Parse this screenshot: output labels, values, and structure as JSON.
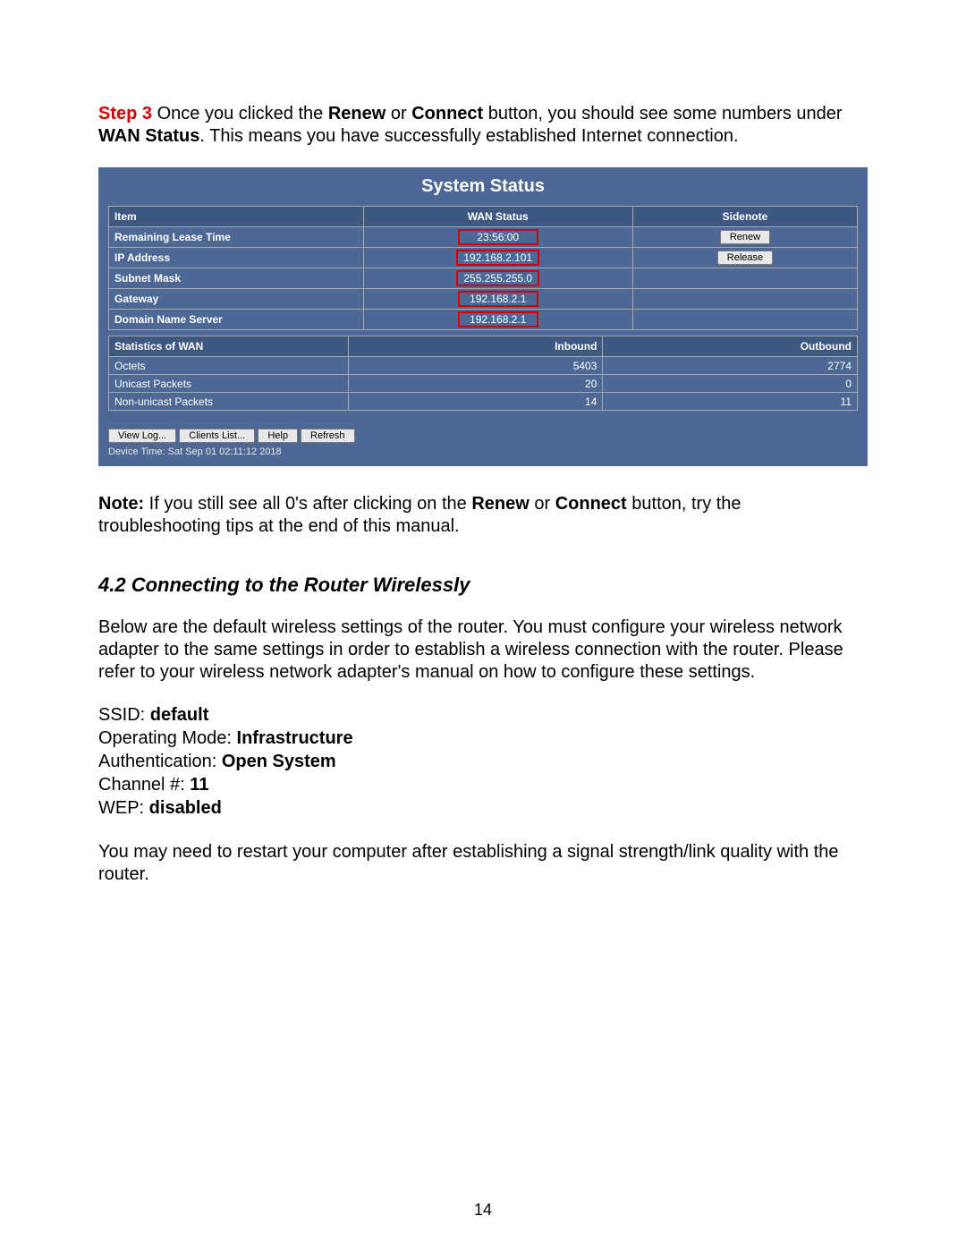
{
  "step": {
    "label": "Step 3",
    "text_before_bold1": " Once you clicked the ",
    "bold1": "Renew",
    "mid1": " or ",
    "bold2": "Connect",
    "mid2": " button, you should see some numbers under ",
    "bold3": "WAN Status",
    "after": ". This means you have successfully established Internet connection."
  },
  "panel": {
    "title": "System Status",
    "table1": {
      "headers": {
        "item": "Item",
        "wan": "WAN Status",
        "note": "Sidenote"
      },
      "rows": [
        {
          "item": "Remaining Lease Time",
          "wan": "23:56:00",
          "note_button": "Renew",
          "red_box": true
        },
        {
          "item": "IP Address",
          "wan": "192.168.2.101",
          "note_button": "Release",
          "red_box": true
        },
        {
          "item": "Subnet Mask",
          "wan": "255.255.255.0",
          "note_button": "",
          "red_box": true
        },
        {
          "item": "Gateway",
          "wan": "192.168.2.1",
          "note_button": "",
          "red_box": true
        },
        {
          "item": "Domain Name Server",
          "wan": "192.168.2.1",
          "note_button": "",
          "red_box": true
        }
      ]
    },
    "table2": {
      "headers": {
        "stat": "Statistics of WAN",
        "in": "Inbound",
        "out": "Outbound"
      },
      "rows": [
        {
          "stat": "Octets",
          "in": "5403",
          "out": "2774"
        },
        {
          "stat": "Unicast Packets",
          "in": "20",
          "out": "0"
        },
        {
          "stat": "Non-unicast Packets",
          "in": "14",
          "out": "11"
        }
      ]
    },
    "buttons": {
      "viewlog": "View Log...",
      "clients": "Clients List...",
      "help": "Help",
      "refresh": "Refresh"
    },
    "device_time": "Device Time: Sat Sep 01 02:11:12 2018"
  },
  "note": {
    "label": "Note:",
    "t1": " If you still see all 0's after clicking on the ",
    "b1": "Renew",
    "t2": " or ",
    "b2": "Connect",
    "t3": " button, try the troubleshooting tips at the end of this manual."
  },
  "section": {
    "heading": "4.2 Connecting to the Router Wirelessly"
  },
  "intro42": "Below are the default wireless settings of the router. You must configure your wireless network adapter to the same settings in order to establish a wireless connection with the router. Please refer to your wireless network adapter's manual on how to configure these settings.",
  "settings": {
    "ssid_label": "SSID: ",
    "ssid_value": "default",
    "mode_label": "Operating Mode: ",
    "mode_value": "Infrastructure",
    "auth_label": "Authentication: ",
    "auth_value": "Open System",
    "chan_label": "Channel #: ",
    "chan_value": "11",
    "wep_label": "WEP: ",
    "wep_value": "disabled"
  },
  "closing": "You may need to restart your computer after establishing a signal strength/link quality with the router.",
  "page_number": "14"
}
